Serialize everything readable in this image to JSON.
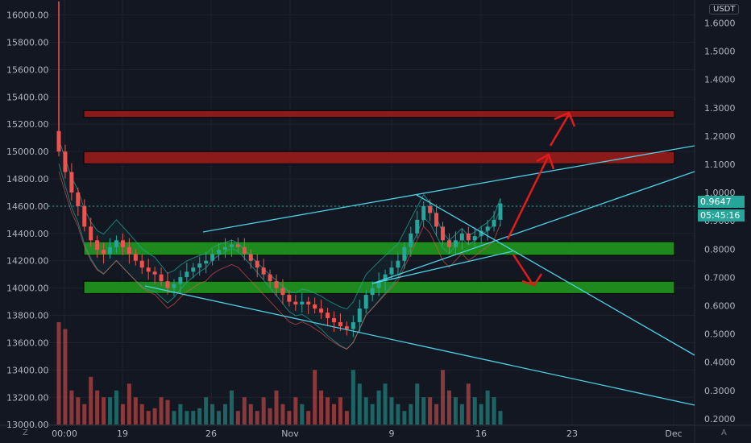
{
  "chart_data": {
    "type": "candlestick",
    "left_axis": {
      "ticks": [
        "16000.00",
        "15800.00",
        "15600.00",
        "15400.00",
        "15200.00",
        "15000.00",
        "14800.00",
        "14600.00",
        "14400.00",
        "14200.00",
        "14000.00",
        "13800.00",
        "13600.00",
        "13400.00",
        "13200.00",
        "13000.00"
      ],
      "range": [
        12995,
        16110
      ]
    },
    "right_axis": {
      "currency": "USDT",
      "ticks": [
        "1.6000",
        "1.5000",
        "1.4000",
        "1.3000",
        "1.2000",
        "1.1000",
        "1.0000",
        "0.9000",
        "0.8000",
        "0.7000",
        "0.6000",
        "0.5000",
        "0.4000",
        "0.3000",
        "0.2000"
      ],
      "range": [
        0.177,
        1.681
      ]
    },
    "x_labels": [
      "00:00",
      "19",
      "26",
      "Nov",
      "9",
      "16",
      "23",
      "Dec"
    ],
    "price_badge": "0.9647",
    "countdown_badge": "05:45:16",
    "colors": {
      "up": "#26a69a",
      "down": "#ef5350",
      "channel": "#4dd0e1",
      "resistance": "#8b1a1a",
      "support": "#1e8a1e",
      "arrow": "#e21b1b",
      "badge": "#26a69a"
    },
    "resistance_zones": [
      [
        15250,
        15300
      ],
      [
        14910,
        15000
      ]
    ],
    "support_zones": [
      [
        14240,
        14340
      ],
      [
        13960,
        14050
      ]
    ],
    "closes": [
      15000,
      14850,
      14700,
      14600,
      14450,
      14350,
      14280,
      14250,
      14300,
      14350,
      14300,
      14250,
      14200,
      14150,
      14120,
      14100,
      14050,
      14000,
      14030,
      14080,
      14120,
      14150,
      14180,
      14200,
      14250,
      14280,
      14300,
      14320,
      14300,
      14250,
      14200,
      14150,
      14100,
      14050,
      14000,
      13950,
      13900,
      13880,
      13900,
      13880,
      13850,
      13820,
      13780,
      13750,
      13720,
      13700,
      13750,
      13850,
      13950,
      14000,
      14050,
      14100,
      14150,
      14200,
      14300,
      14400,
      14500,
      14600,
      14550,
      14450,
      14350,
      14300,
      14350,
      14400,
      14350,
      14380,
      14420,
      14450,
      14500,
      14620
    ],
    "volumes": [
      13750,
      13700,
      13250,
      13200,
      13150,
      13350,
      13250,
      13200,
      13200,
      13250,
      13150,
      13300,
      13200,
      13150,
      13100,
      13120,
      13200,
      13180,
      13100,
      13150,
      13100,
      13100,
      13120,
      13200,
      13150,
      13100,
      13150,
      13250,
      13100,
      13200,
      13150,
      13100,
      13200,
      13120,
      13250,
      13150,
      13100,
      13200,
      13150,
      13100,
      13400,
      13250,
      13200,
      13150,
      13200,
      13100,
      13400,
      13300,
      13200,
      13150,
      13250,
      13300,
      13200,
      13150,
      13100,
      13150,
      13300,
      13200,
      13200,
      13150,
      13400,
      13250,
      13200,
      13150,
      13300,
      13200,
      13150,
      13250,
      13200,
      13100
    ]
  }
}
